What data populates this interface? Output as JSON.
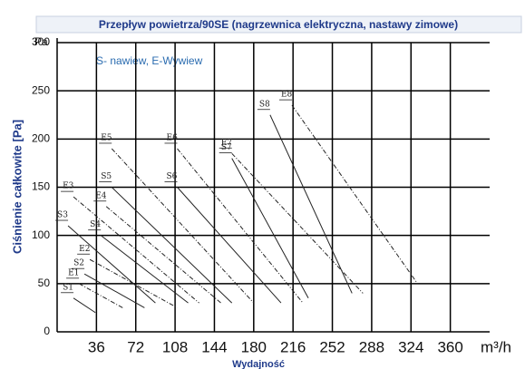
{
  "chart_data": {
    "type": "line",
    "title": "Przepływ powietrza/90SE (nagrzewnica elektryczna, nastawy zimowe)",
    "annotation": "S- nawiew, E-Wywiew",
    "y_label": "Ciśnienie całkowite [Pa]",
    "x_label": "Wydajność",
    "y_unit": "Pa",
    "x_unit": "m³/h",
    "xlim": [
      0,
      396
    ],
    "ylim": [
      0,
      300
    ],
    "xticks": [
      36,
      72,
      108,
      144,
      180,
      216,
      252,
      288,
      324,
      360
    ],
    "yticks": [
      0,
      50,
      100,
      150,
      200,
      250,
      300
    ],
    "grid": true,
    "series": [
      {
        "name": "S1",
        "color": "#222",
        "x": [
          15,
          35
        ],
        "values": [
          35,
          20
        ]
      },
      {
        "name": "E1",
        "color": "#222",
        "x": [
          20,
          60
        ],
        "values": [
          50,
          25
        ]
      },
      {
        "name": "S2",
        "color": "#222",
        "x": [
          25,
          80
        ],
        "values": [
          60,
          25
        ]
      },
      {
        "name": "E2",
        "color": "#222",
        "x": [
          30,
          110
        ],
        "values": [
          75,
          25
        ]
      },
      {
        "name": "S3",
        "color": "#222",
        "x": [
          10,
          90
        ],
        "values": [
          110,
          30
        ]
      },
      {
        "name": "E3",
        "color": "#222",
        "x": [
          15,
          130
        ],
        "values": [
          140,
          30
        ]
      },
      {
        "name": "S4",
        "color": "#222",
        "x": [
          40,
          120
        ],
        "values": [
          100,
          30
        ]
      },
      {
        "name": "E4",
        "color": "#222",
        "x": [
          45,
          150
        ],
        "values": [
          130,
          30
        ]
      },
      {
        "name": "S5",
        "color": "#222",
        "x": [
          50,
          160
        ],
        "values": [
          150,
          30
        ]
      },
      {
        "name": "E5",
        "color": "#222",
        "x": [
          50,
          180
        ],
        "values": [
          190,
          30
        ]
      },
      {
        "name": "S6",
        "color": "#222",
        "x": [
          110,
          205
        ],
        "values": [
          150,
          30
        ]
      },
      {
        "name": "E6",
        "color": "#222",
        "x": [
          110,
          225
        ],
        "values": [
          190,
          30
        ]
      },
      {
        "name": "S7",
        "color": "#222",
        "x": [
          160,
          230
        ],
        "values": [
          180,
          35
        ]
      },
      {
        "name": "E7",
        "color": "#222",
        "x": [
          160,
          280
        ],
        "values": [
          185,
          40
        ]
      },
      {
        "name": "S8",
        "color": "#222",
        "x": [
          195,
          270
        ],
        "values": [
          225,
          40
        ]
      },
      {
        "name": "E8",
        "color": "#222",
        "x": [
          215,
          330
        ],
        "values": [
          235,
          50
        ]
      }
    ]
  }
}
